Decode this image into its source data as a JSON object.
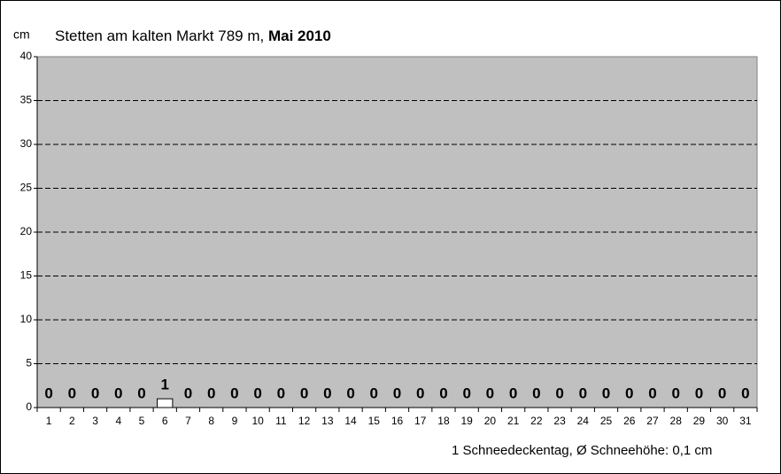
{
  "chart_data": {
    "type": "bar",
    "title": "Stetten am kalten Markt 789 m,",
    "title_bold": "Mai 2010",
    "y_label": "cm",
    "annotation": "1 Schneedeckentag, Ø Schneehöhe:  0,1 cm",
    "categories": [
      "1",
      "2",
      "3",
      "4",
      "5",
      "6",
      "7",
      "8",
      "9",
      "10",
      "11",
      "12",
      "13",
      "14",
      "15",
      "16",
      "17",
      "18",
      "19",
      "20",
      "21",
      "22",
      "23",
      "24",
      "25",
      "26",
      "27",
      "28",
      "29",
      "30",
      "31"
    ],
    "values": [
      0,
      0,
      0,
      0,
      0,
      1,
      0,
      0,
      0,
      0,
      0,
      0,
      0,
      0,
      0,
      0,
      0,
      0,
      0,
      0,
      0,
      0,
      0,
      0,
      0,
      0,
      0,
      0,
      0,
      0,
      0
    ],
    "color": "#ffffff",
    "plot_background": "#c0c0c0",
    "ylim": [
      0,
      40
    ],
    "yticks": [
      0,
      5,
      10,
      15,
      20,
      25,
      30,
      35,
      40
    ],
    "grid": true
  }
}
